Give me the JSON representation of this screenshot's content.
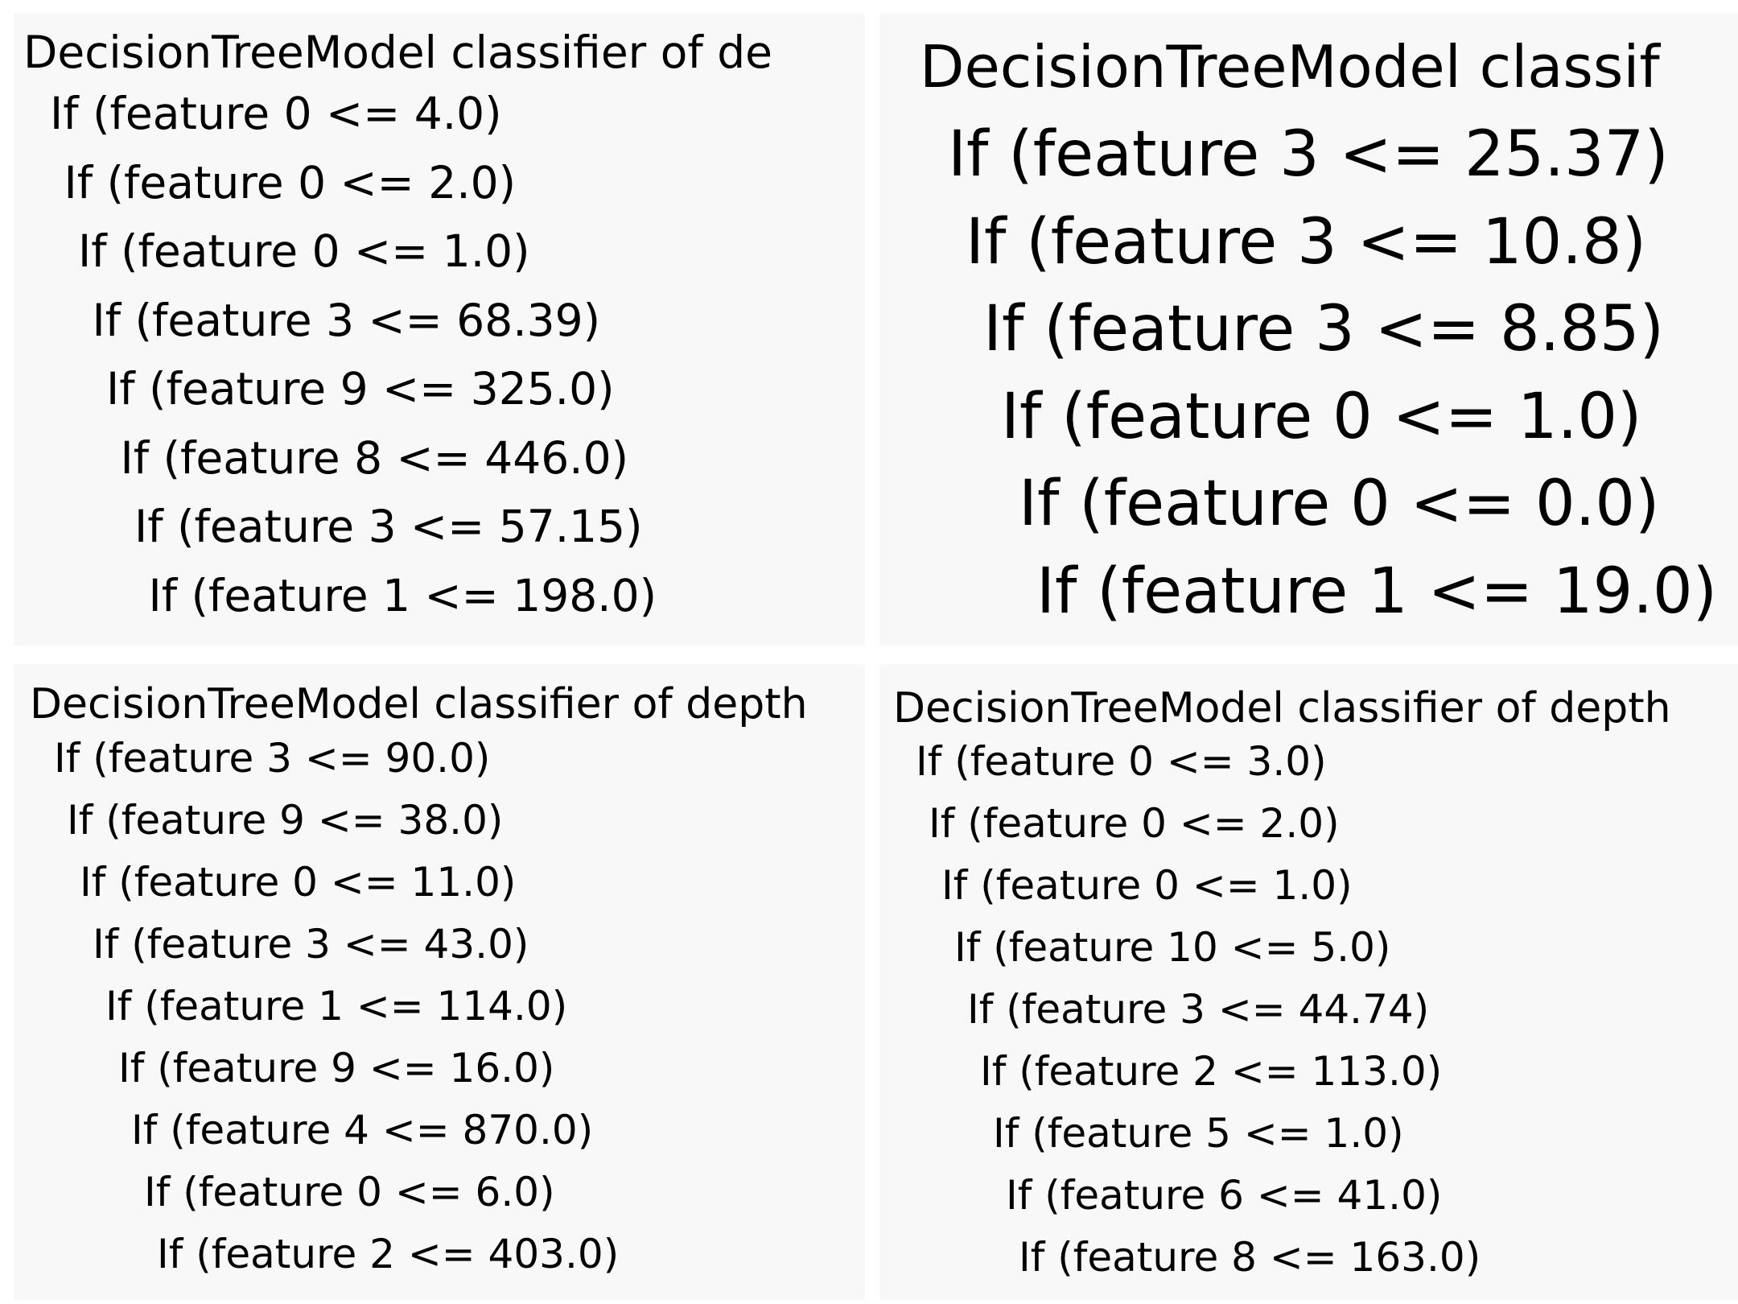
{
  "panels": [
    {
      "title": "DecisionTreeModel classifier of de",
      "rules": [
        "If (feature 0 <= 4.0)",
        "If (feature 0 <= 2.0)",
        "If (feature 0 <= 1.0)",
        "If (feature 3 <= 68.39)",
        "If (feature 9 <= 325.0)",
        "If (feature 8 <= 446.0)",
        "If (feature 3 <= 57.15)",
        "If (feature 1 <= 198.0)"
      ]
    },
    {
      "title": "DecisionTreeModel classif",
      "rules": [
        "If (feature 3 <= 25.37)",
        "If (feature 3 <= 10.8)",
        "If (feature 3 <= 8.85)",
        "If (feature 0 <= 1.0)",
        "If (feature 0 <= 0.0)",
        "If (feature 1 <= 19.0)"
      ]
    },
    {
      "title": "DecisionTreeModel classifier of depth",
      "rules": [
        "If (feature 3 <= 90.0)",
        "If (feature 9 <= 38.0)",
        "If (feature 0 <= 11.0)",
        "If (feature 3 <= 43.0)",
        "If (feature 1 <= 114.0)",
        "If (feature 9 <= 16.0)",
        "If (feature 4 <= 870.0)",
        "If (feature 0 <= 6.0)",
        "If (feature 2 <= 403.0)"
      ]
    },
    {
      "title": "DecisionTreeModel classifier of depth",
      "rules": [
        "If (feature 0 <= 3.0)",
        "If (feature 0 <= 2.0)",
        "If (feature 0 <= 1.0)",
        "If (feature 10 <= 5.0)",
        "If (feature 3 <= 44.74)",
        "If (feature 2 <= 113.0)",
        "If (feature 5 <= 1.0)",
        "If (feature 6 <= 41.0)",
        "If (feature 8 <= 163.0)"
      ]
    }
  ]
}
